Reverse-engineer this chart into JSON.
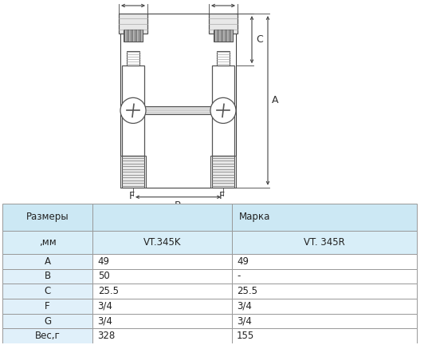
{
  "bg_color": "#ffffff",
  "table_header_color": "#cce8f4",
  "table_subheader_color": "#d8eef8",
  "table_border_color": "#999999",
  "table_data": {
    "col1_header": "VT.345K",
    "col2_header": "VT. 345R",
    "col1": [
      "49",
      "50",
      "25.5",
      "3/4",
      "3/4",
      "328"
    ],
    "col2": [
      "49",
      "-",
      "25.5",
      "3/4",
      "3/4",
      "155"
    ],
    "marca_header": "Марка",
    "size_label": "Размеры",
    "mm_label": ",мм",
    "row_labels": [
      "A",
      "B",
      "C",
      "F",
      "G",
      "Вес,г"
    ]
  },
  "lc": "#555555",
  "lc2": "#333333",
  "gray_light": "#e8e8e8",
  "gray_mid": "#bbbbbb",
  "gray_dark": "#888888"
}
